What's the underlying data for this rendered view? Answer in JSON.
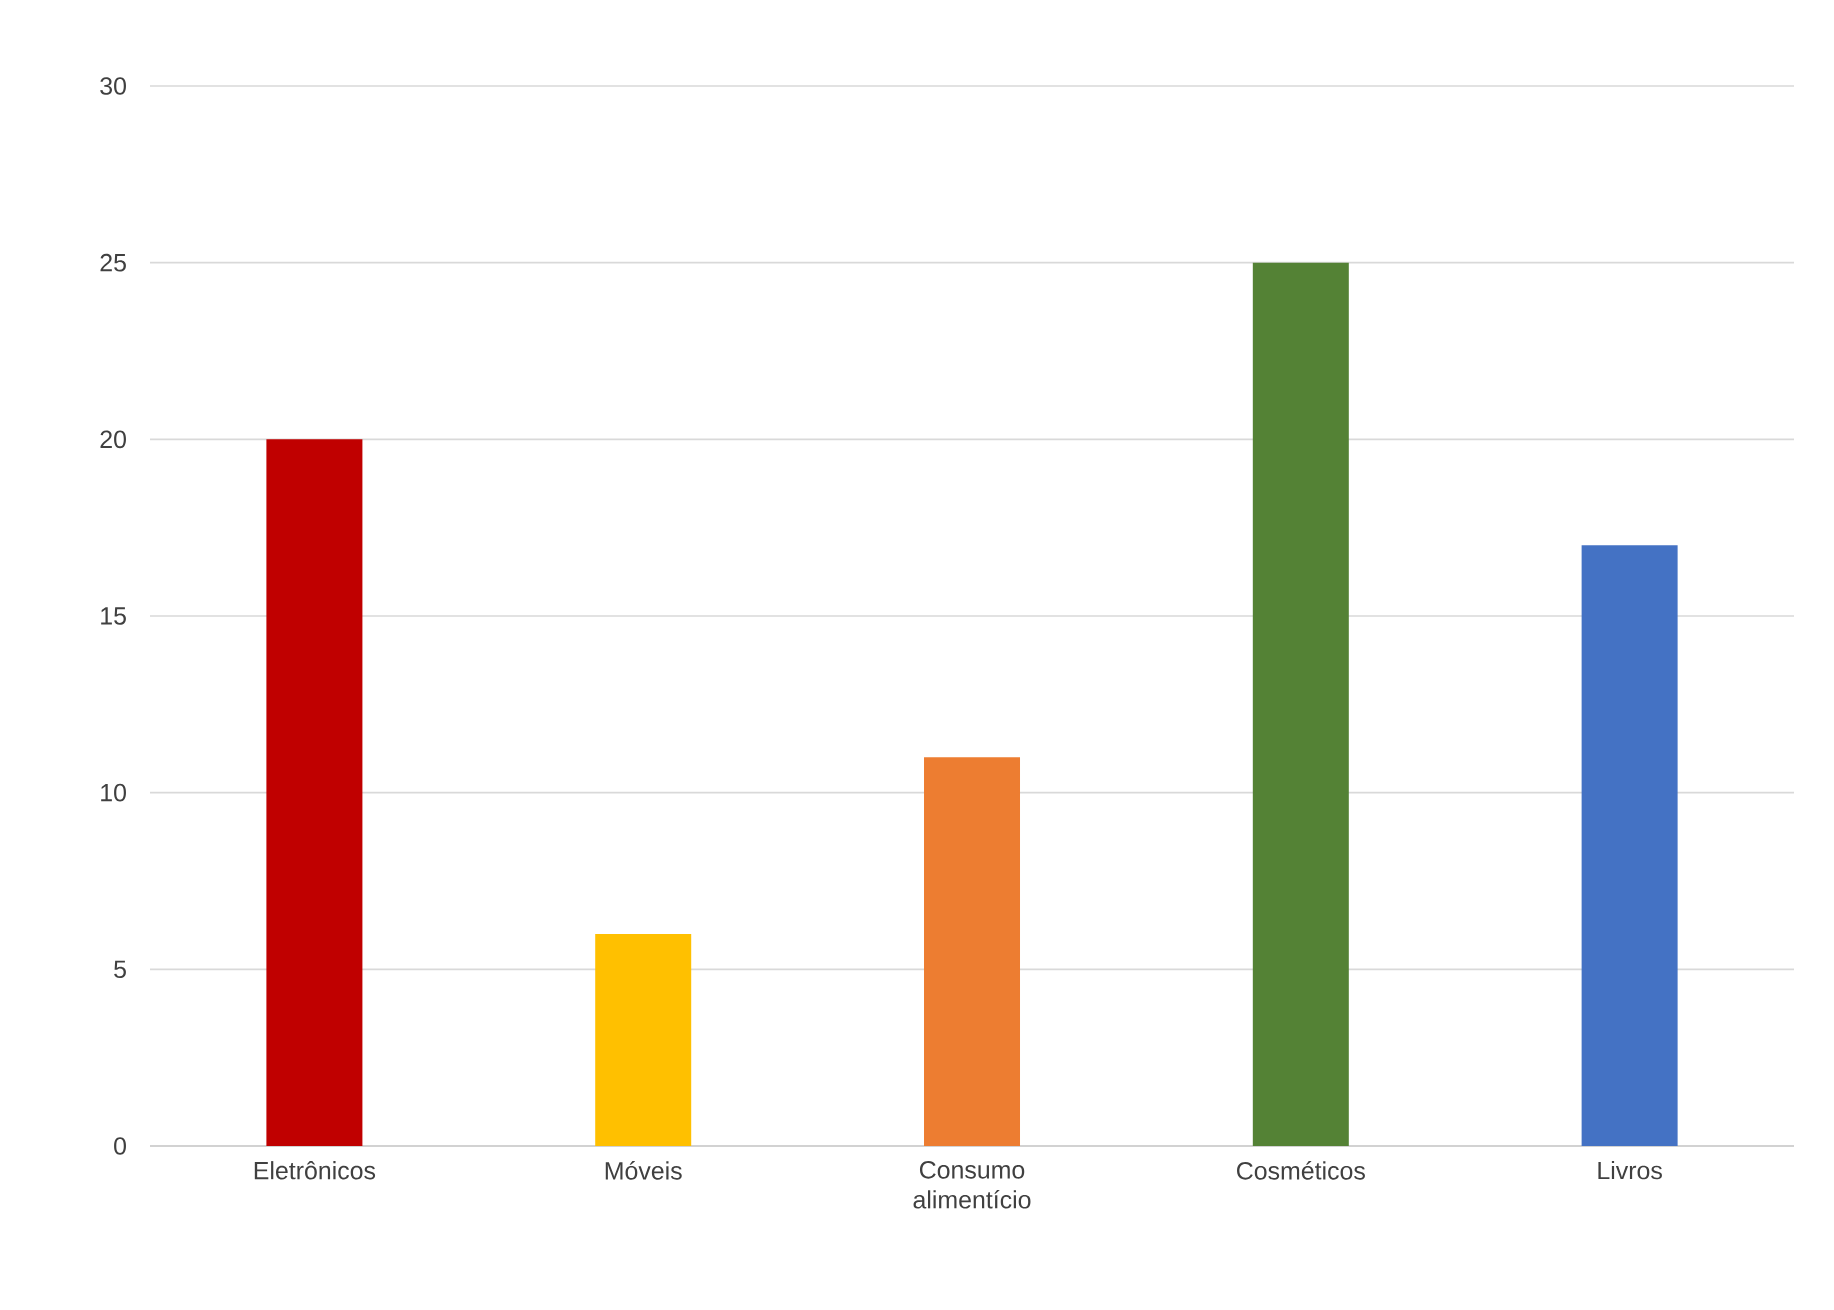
{
  "chart_data": {
    "type": "bar",
    "categories": [
      "Eletrônicos",
      "Móveis",
      "Consumo alimentício",
      "Cosméticos",
      "Livros"
    ],
    "values": [
      20,
      6,
      11,
      25,
      17
    ],
    "colors": [
      "#c00000",
      "#ffc000",
      "#ed7d31",
      "#548235",
      "#4472c4"
    ],
    "ylim": [
      0,
      30
    ],
    "yticks": [
      0,
      5,
      10,
      15,
      20,
      25,
      30
    ],
    "grid": "y"
  }
}
